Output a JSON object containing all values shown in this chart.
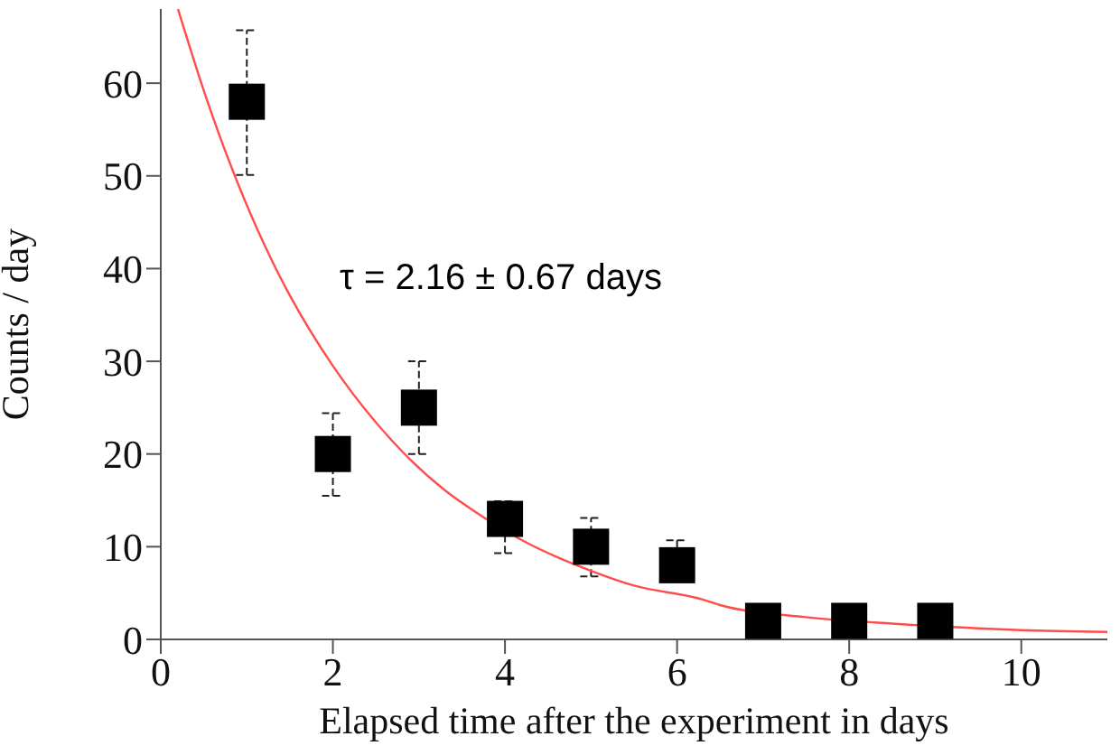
{
  "chart_data": {
    "type": "scatter",
    "xlabel": "Elapsed time after the experiment in days",
    "ylabel": "Counts / day",
    "annotations": [
      "τ = 2.16 ± 0.67 days"
    ],
    "xlim": [
      0,
      11
    ],
    "xticks": [
      0,
      2,
      4,
      6,
      8,
      10
    ],
    "ylim": [
      0,
      68
    ],
    "yticks": [
      0,
      10,
      20,
      30,
      40,
      50,
      60
    ],
    "grid": false,
    "legend": false,
    "series": [
      {
        "color": "#000000",
        "marker": "square",
        "x": [
          1,
          2,
          3,
          4,
          5,
          6,
          7,
          8,
          9
        ],
        "values": [
          58,
          20,
          25,
          13,
          10,
          8,
          2,
          2,
          2
        ],
        "errors": [
          [
            50.1,
            65.7
          ],
          [
            15.5,
            24.4
          ],
          [
            20,
            30
          ],
          [
            9.3,
            14.9
          ],
          [
            6.8,
            13.1
          ],
          [
            6.4,
            10.7
          ],
          null,
          null,
          null
        ]
      },
      {
        "type": "line",
        "color": "#ff4d4d",
        "marker": "none",
        "line_style": "solid",
        "x": [
          0.2,
          0.5,
          1.3,
          1.5,
          2,
          2.5,
          3.3,
          3.6,
          4.3,
          4.6,
          5,
          5.5,
          6.3,
          6.5,
          7.5,
          8.5,
          9.5,
          10,
          11
        ],
        "values": [
          68,
          59.2,
          40.7,
          37.1,
          29.5,
          23.4,
          16.1,
          14.1,
          10.2,
          8.9,
          7.4,
          5.8,
          4.3,
          3.7,
          2.4,
          1.7,
          1.2,
          1.0,
          0.8
        ]
      }
    ]
  }
}
